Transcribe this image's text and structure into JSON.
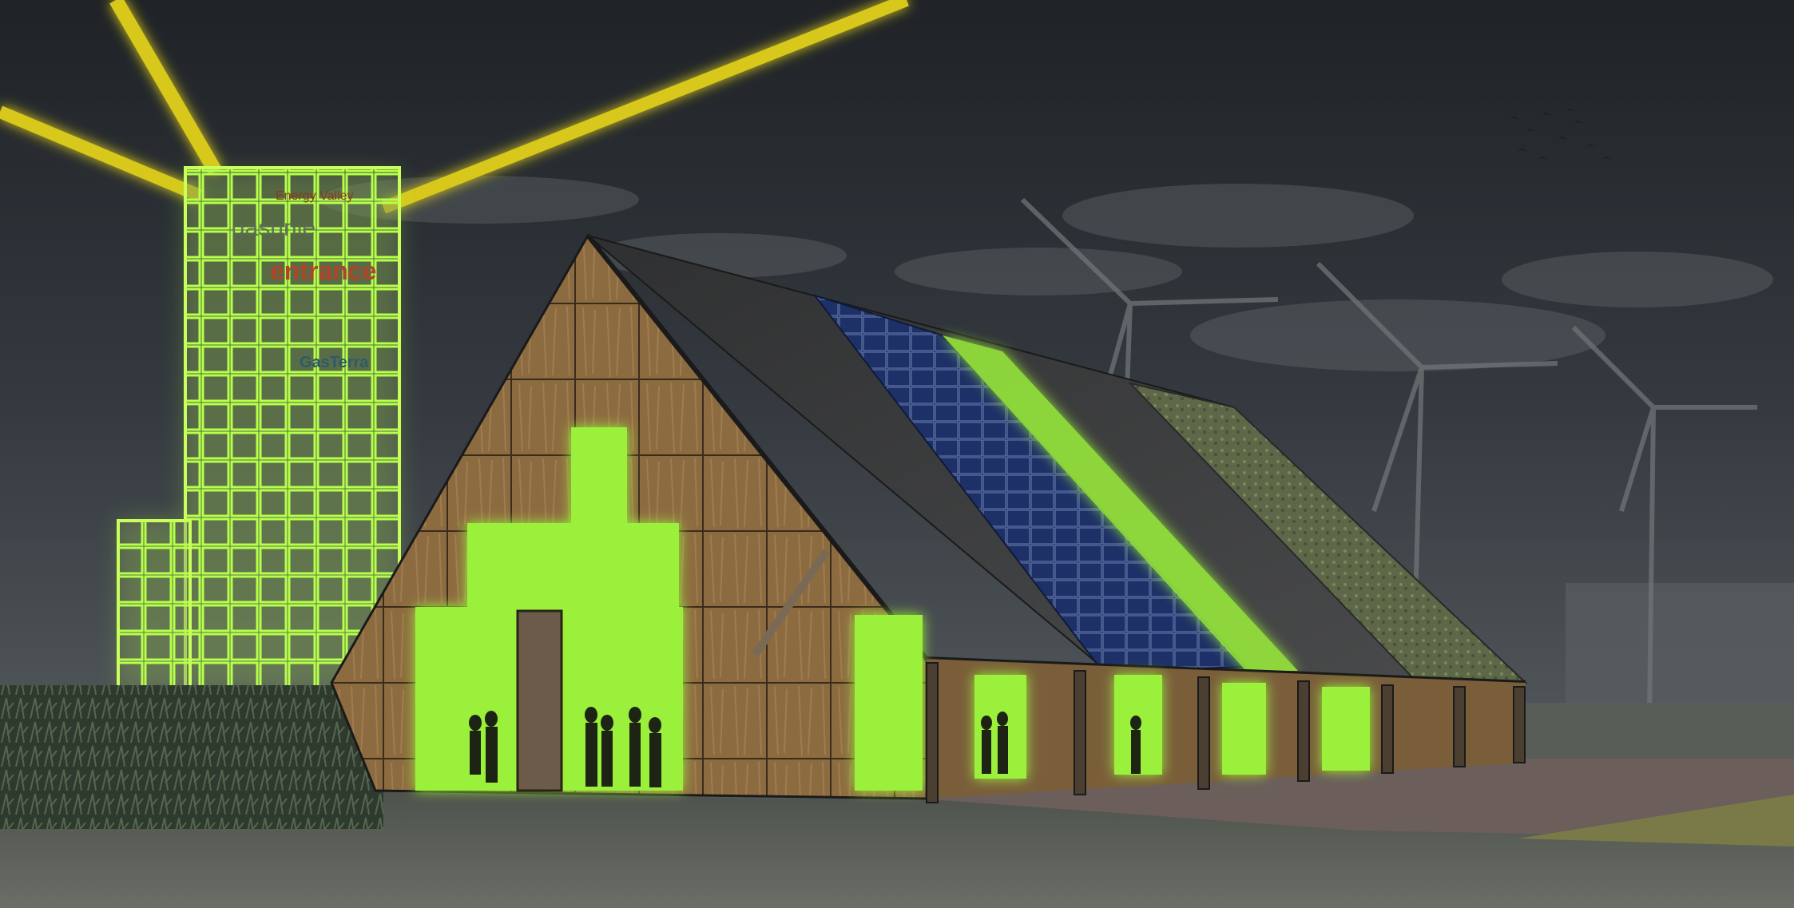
{
  "scene": {
    "colors": {
      "sky_top": "#23272b",
      "sky_mid": "#3a4046",
      "sky_horizon": "#55595c",
      "glow_green": "#9bf03a",
      "beam_yellow": "#e8d81a",
      "straw": "#8a6a3e",
      "roof_dark": "#3e3f40",
      "solar_blue": "#1d2f66",
      "green_roof": "#5e6a44",
      "grass": "#5a5f58",
      "plaza": "#6a5d5a"
    }
  },
  "tower": {
    "logos": {
      "logo1": "Energy Valley",
      "logo2": "gasunie",
      "logo3": "entrance",
      "logo4": "GasTerra"
    }
  }
}
